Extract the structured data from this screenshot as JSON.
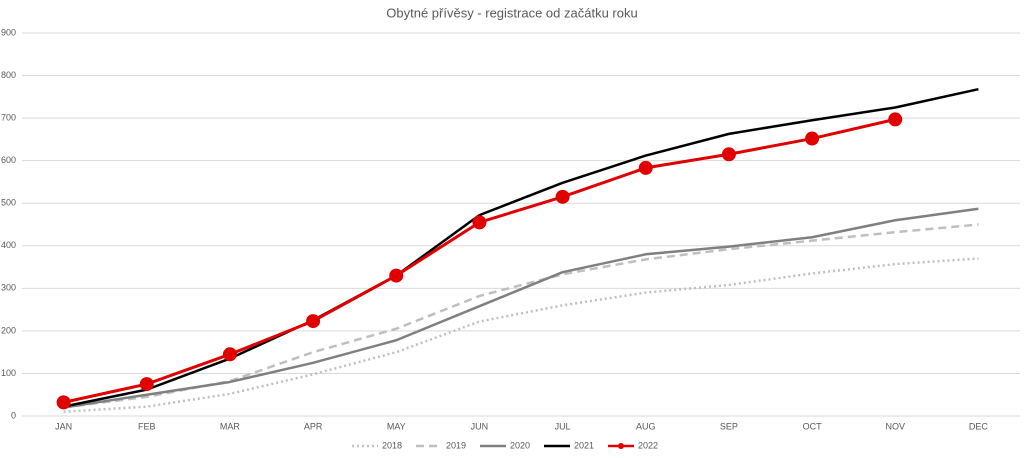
{
  "chart_data": {
    "type": "line",
    "title": "Obytné přívěsy - registrace od začátku roku",
    "categories": [
      "JAN",
      "FEB",
      "MAR",
      "APR",
      "MAY",
      "JUN",
      "JUL",
      "AUG",
      "SEP",
      "OCT",
      "NOV",
      "DEC"
    ],
    "ylim": [
      0,
      900
    ],
    "yticks": [
      0,
      100,
      200,
      300,
      400,
      500,
      600,
      700,
      800,
      900
    ],
    "grid": true,
    "legend": "bottom",
    "series": [
      {
        "name": "2018",
        "color": "#bfbfbf",
        "line_style": "dotted",
        "markers": false,
        "values": [
          10,
          22,
          52,
          98,
          150,
          222,
          260,
          290,
          308,
          335,
          357,
          370
        ]
      },
      {
        "name": "2019",
        "color": "#bfbfbf",
        "line_style": "dashed",
        "markers": false,
        "values": [
          20,
          45,
          82,
          150,
          205,
          282,
          333,
          368,
          392,
          412,
          432,
          450
        ]
      },
      {
        "name": "2020",
        "color": "#808080",
        "line_style": "solid",
        "markers": false,
        "values": [
          20,
          50,
          80,
          125,
          178,
          258,
          338,
          380,
          398,
          420,
          460,
          487
        ]
      },
      {
        "name": "2021",
        "color": "#000000",
        "line_style": "solid",
        "markers": false,
        "values": [
          22,
          62,
          135,
          225,
          330,
          472,
          548,
          612,
          663,
          695,
          725,
          768
        ]
      },
      {
        "name": "2022",
        "color": "#e00000",
        "line_style": "solid",
        "markers": true,
        "values": [
          32,
          75,
          145,
          223,
          330,
          455,
          515,
          583,
          615,
          652,
          697,
          null
        ]
      }
    ]
  }
}
